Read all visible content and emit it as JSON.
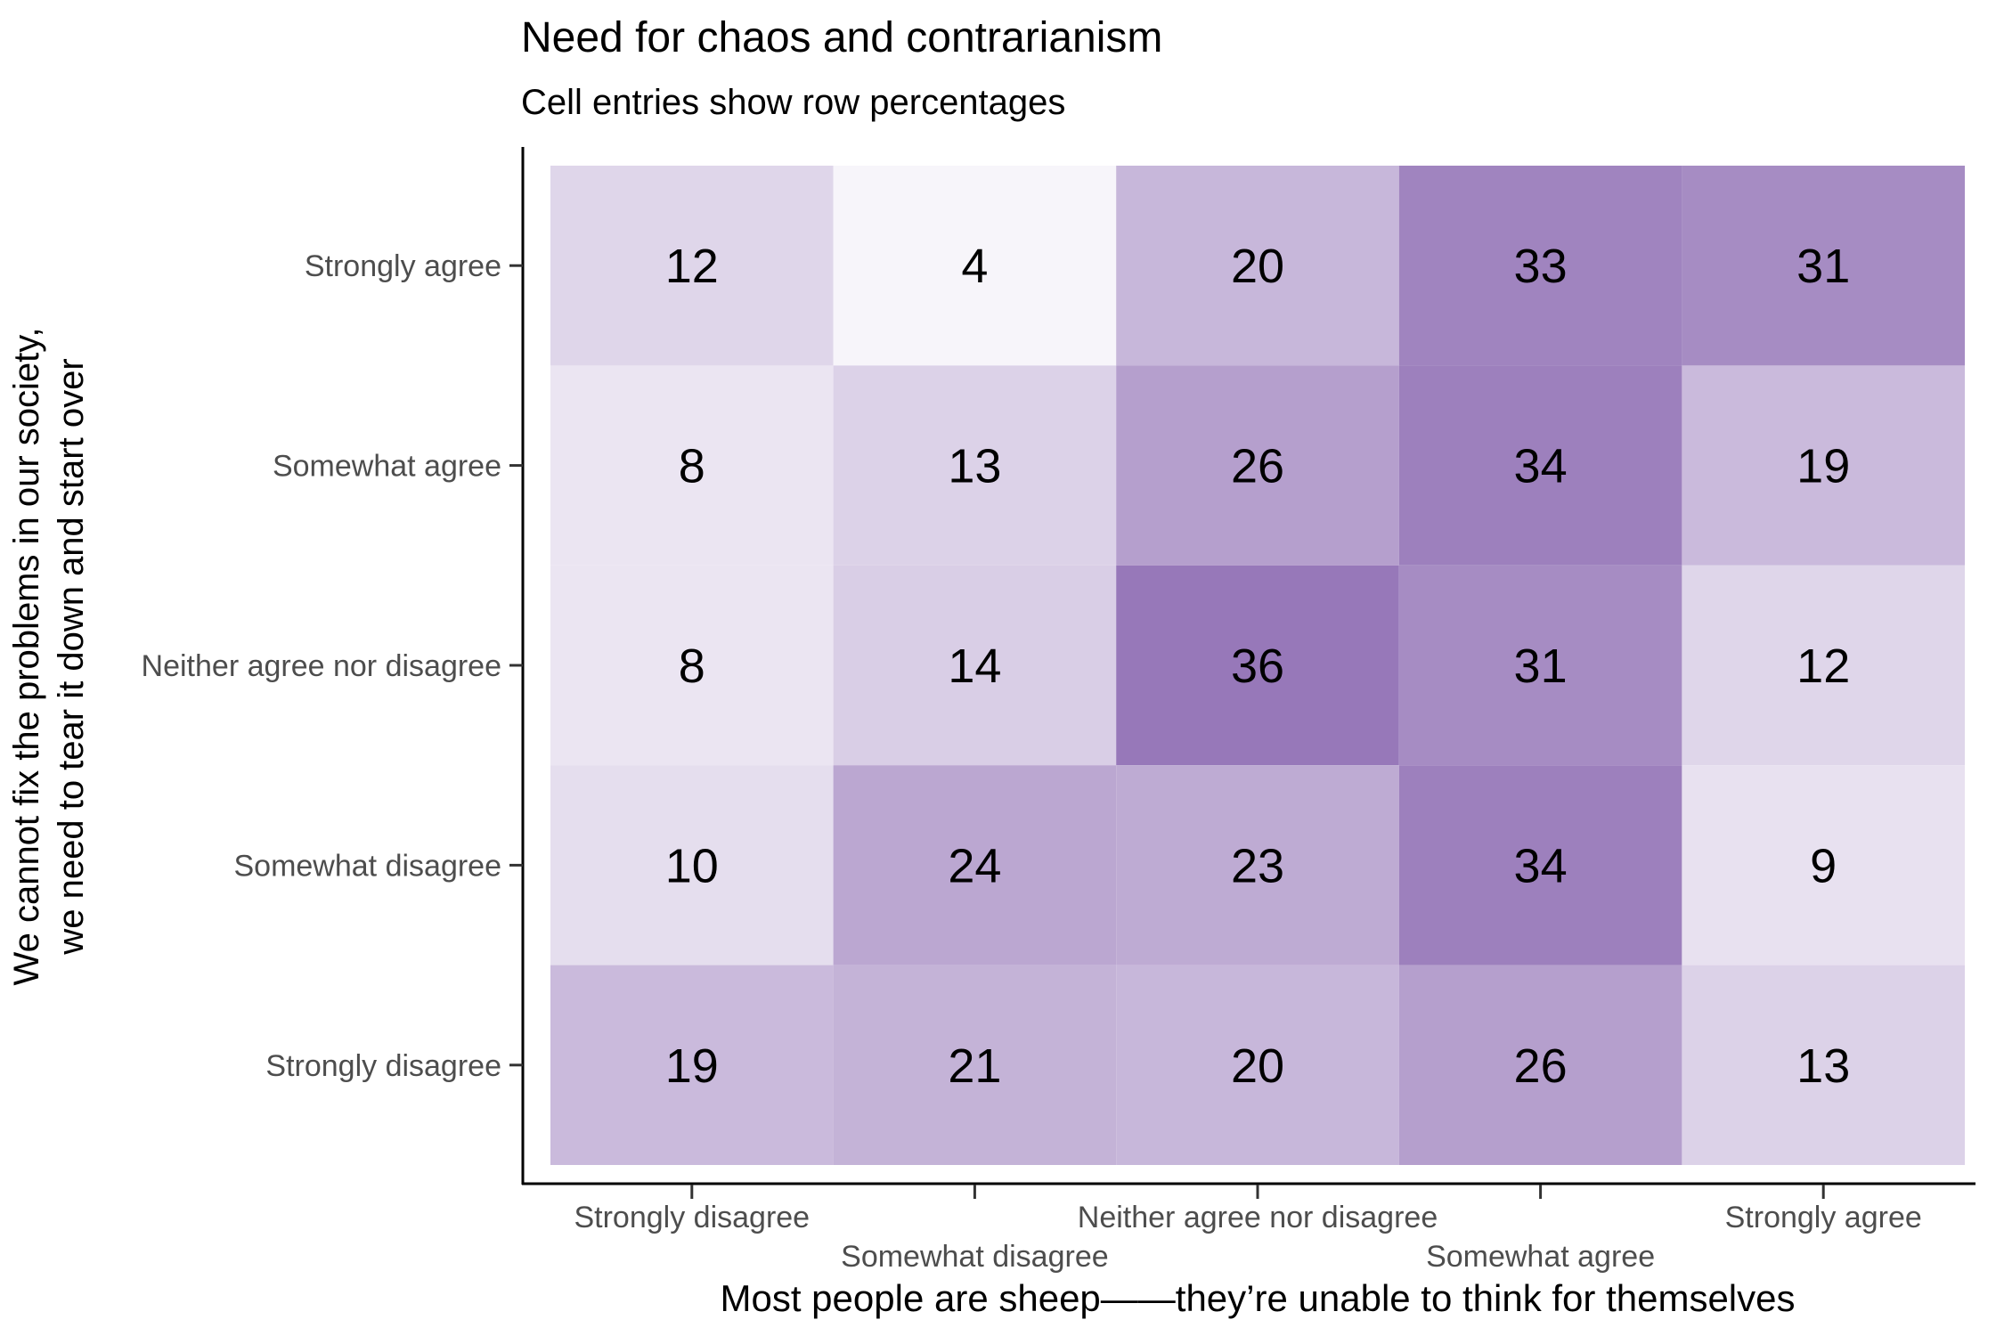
{
  "chart_data": {
    "type": "heatmap",
    "title": "Need for chaos and contrarianism",
    "subtitle": "Cell entries show row percentages",
    "xlabel": "Most people are sheep——they’re unable to think for themselves",
    "ylabel_lines": [
      "We cannot fix the problems in our society,",
      "we need to tear it down and start over"
    ],
    "x_categories": [
      "Strongly disagree",
      "Somewhat disagree",
      "Neither agree nor disagree",
      "Somewhat agree",
      "Strongly agree"
    ],
    "y_categories": [
      "Strongly agree",
      "Somewhat agree",
      "Neither agree nor disagree",
      "Somewhat disagree",
      "Strongly disagree"
    ],
    "values": [
      [
        12,
        4,
        20,
        33,
        31
      ],
      [
        8,
        13,
        26,
        34,
        19
      ],
      [
        8,
        14,
        36,
        31,
        12
      ],
      [
        10,
        24,
        23,
        34,
        9
      ],
      [
        19,
        21,
        20,
        26,
        13
      ]
    ],
    "value_range": [
      4,
      36
    ],
    "color_low": "#f7f5fa",
    "color_high": "#9778b9",
    "grid": false,
    "legend": "none"
  }
}
